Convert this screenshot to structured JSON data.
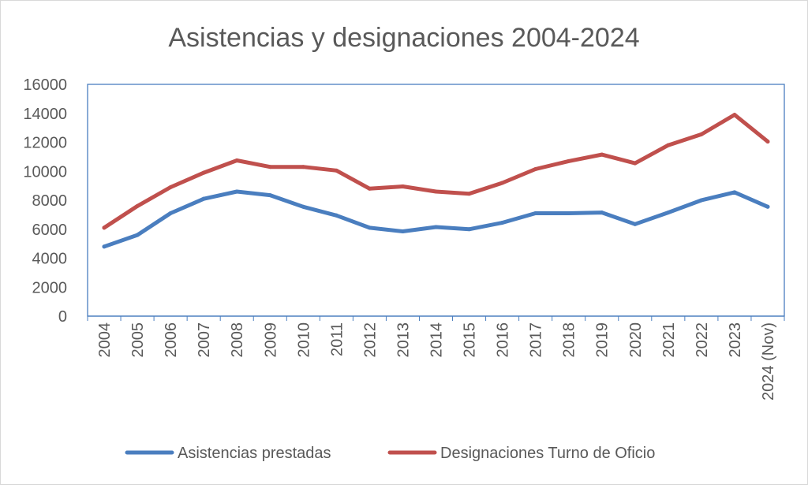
{
  "chart_data": {
    "type": "line",
    "title": "Asistencias y designaciones 2004-2024",
    "xlabel": "",
    "ylabel": "",
    "categories": [
      "2004",
      "2005",
      "2006",
      "2007",
      "2008",
      "2009",
      "2010",
      "2011",
      "2012",
      "2013",
      "2014",
      "2015",
      "2016",
      "2017",
      "2018",
      "2019",
      "2020",
      "2021",
      "2022",
      "2023",
      "2024 (Nov)"
    ],
    "ylim": [
      0,
      16000
    ],
    "yticks": [
      0,
      2000,
      4000,
      6000,
      8000,
      10000,
      12000,
      14000,
      16000
    ],
    "grid": false,
    "legend_position": "bottom",
    "series": [
      {
        "name": "Asistencias prestadas",
        "color": "#4a7ebf",
        "values": [
          4800,
          5600,
          7100,
          8100,
          8600,
          8350,
          7550,
          6950,
          6100,
          5850,
          6150,
          6000,
          6450,
          7100,
          7100,
          7150,
          6350,
          7150,
          8000,
          8550,
          7550
        ]
      },
      {
        "name": "Designaciones Turno de Oficio",
        "color": "#c0504d",
        "values": [
          6100,
          7600,
          8900,
          9900,
          10750,
          10300,
          10300,
          10050,
          8800,
          8950,
          8600,
          8450,
          9200,
          10150,
          10700,
          11150,
          10550,
          11800,
          12550,
          13900,
          12050
        ]
      }
    ]
  }
}
